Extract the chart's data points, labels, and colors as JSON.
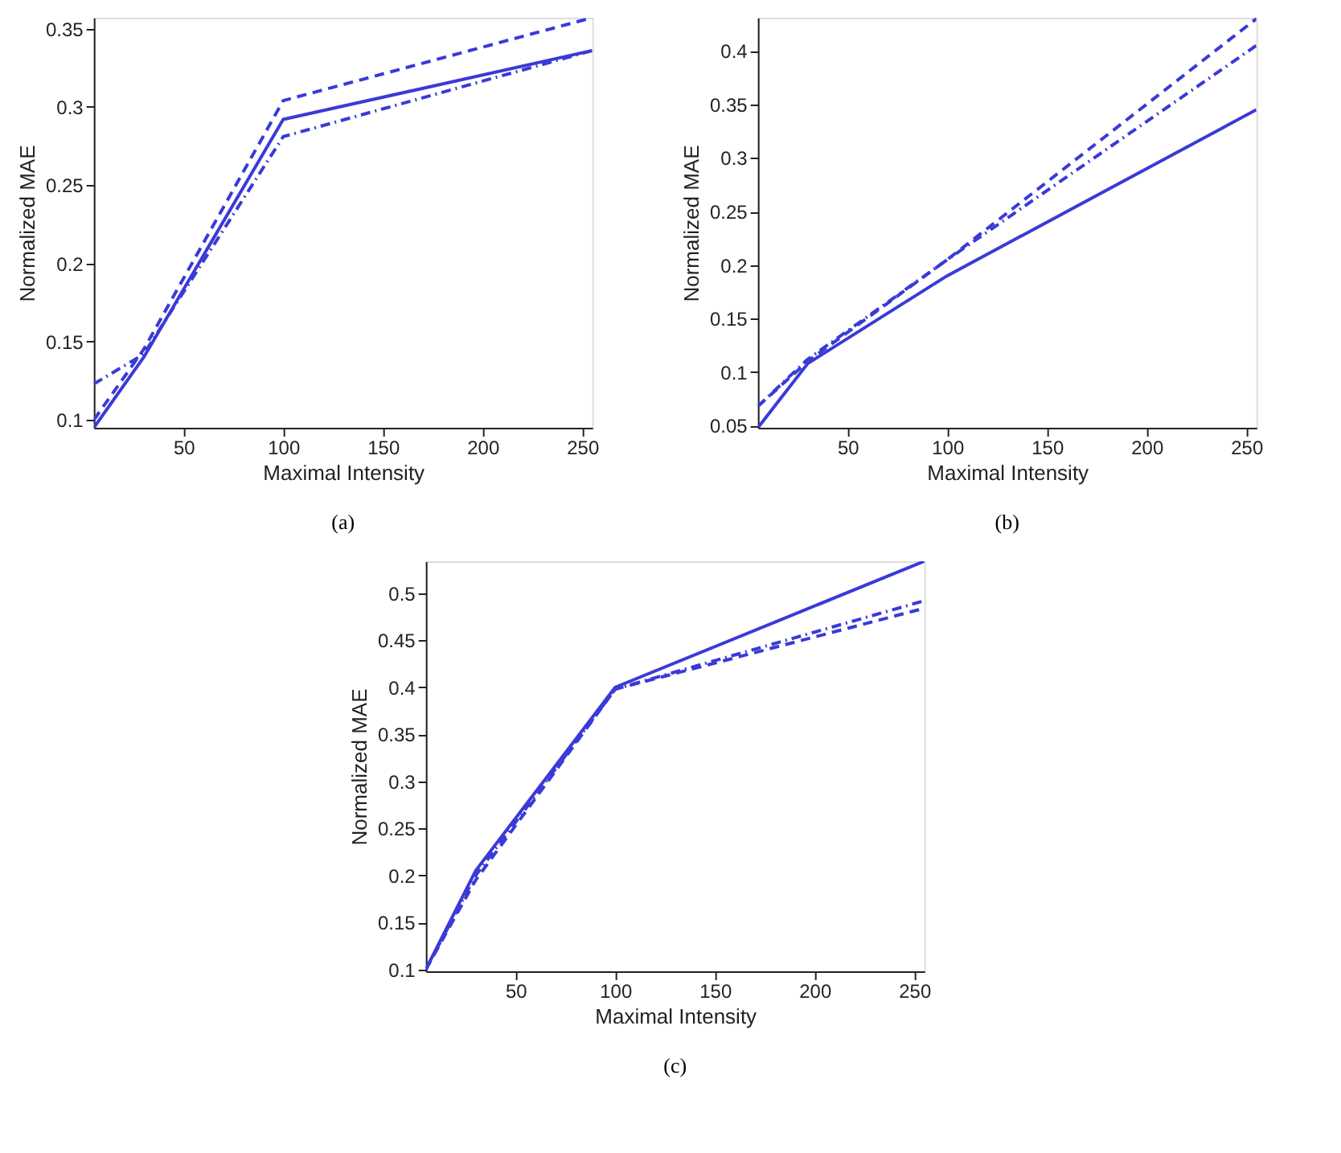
{
  "chart_data": [
    {
      "type": "line",
      "title": "(a)",
      "xlabel": "Maximal Intensity",
      "ylabel": "Normalized MAE",
      "xlim": [
        5,
        255
      ],
      "xticks": [
        50,
        100,
        150,
        200,
        250
      ],
      "ylim": [
        0.095,
        0.357
      ],
      "yticks": [
        0.1,
        0.15,
        0.2,
        0.25,
        0.3,
        0.35
      ],
      "x": [
        5,
        30,
        100,
        255
      ],
      "series": [
        {
          "color": "#3a3ad8",
          "line_style": "solid",
          "values": [
            0.095,
            0.14,
            0.292,
            0.336
          ]
        },
        {
          "color": "#3a3ad8",
          "line_style": "dashed",
          "values": [
            0.1,
            0.145,
            0.304,
            0.357
          ]
        },
        {
          "color": "#3a3ad8",
          "line_style": "dashdot",
          "values": [
            0.123,
            0.142,
            0.281,
            0.336
          ]
        }
      ]
    },
    {
      "type": "line",
      "title": "(b)",
      "xlabel": "Maximal Intensity",
      "ylabel": "Normalized MAE",
      "xlim": [
        5,
        255
      ],
      "xticks": [
        50,
        100,
        150,
        200,
        250
      ],
      "ylim": [
        0.048,
        0.431
      ],
      "yticks": [
        0.05,
        0.1,
        0.15,
        0.2,
        0.25,
        0.3,
        0.35,
        0.4
      ],
      "x": [
        5,
        30,
        100,
        255
      ],
      "series": [
        {
          "color": "#3a3ad8",
          "line_style": "solid",
          "values": [
            0.048,
            0.108,
            0.19,
            0.345
          ]
        },
        {
          "color": "#3a3ad8",
          "line_style": "dashed",
          "values": [
            0.068,
            0.11,
            0.205,
            0.43
          ]
        },
        {
          "color": "#3a3ad8",
          "line_style": "dashdot",
          "values": [
            0.068,
            0.112,
            0.205,
            0.405
          ]
        }
      ]
    },
    {
      "type": "line",
      "title": "(c)",
      "xlabel": "Maximal Intensity",
      "ylabel": "Normalized MAE",
      "xlim": [
        5,
        255
      ],
      "xticks": [
        50,
        100,
        150,
        200,
        250
      ],
      "ylim": [
        0.098,
        0.534
      ],
      "yticks": [
        0.1,
        0.15,
        0.2,
        0.25,
        0.3,
        0.35,
        0.4,
        0.45,
        0.5
      ],
      "x": [
        5,
        30,
        100,
        255
      ],
      "series": [
        {
          "color": "#3a3ad8",
          "line_style": "solid",
          "values": [
            0.1,
            0.205,
            0.4,
            0.534
          ]
        },
        {
          "color": "#3a3ad8",
          "line_style": "dashed",
          "values": [
            0.1,
            0.195,
            0.398,
            0.484
          ]
        },
        {
          "color": "#3a3ad8",
          "line_style": "dashdot",
          "values": [
            0.1,
            0.2,
            0.398,
            0.492
          ]
        }
      ]
    }
  ]
}
